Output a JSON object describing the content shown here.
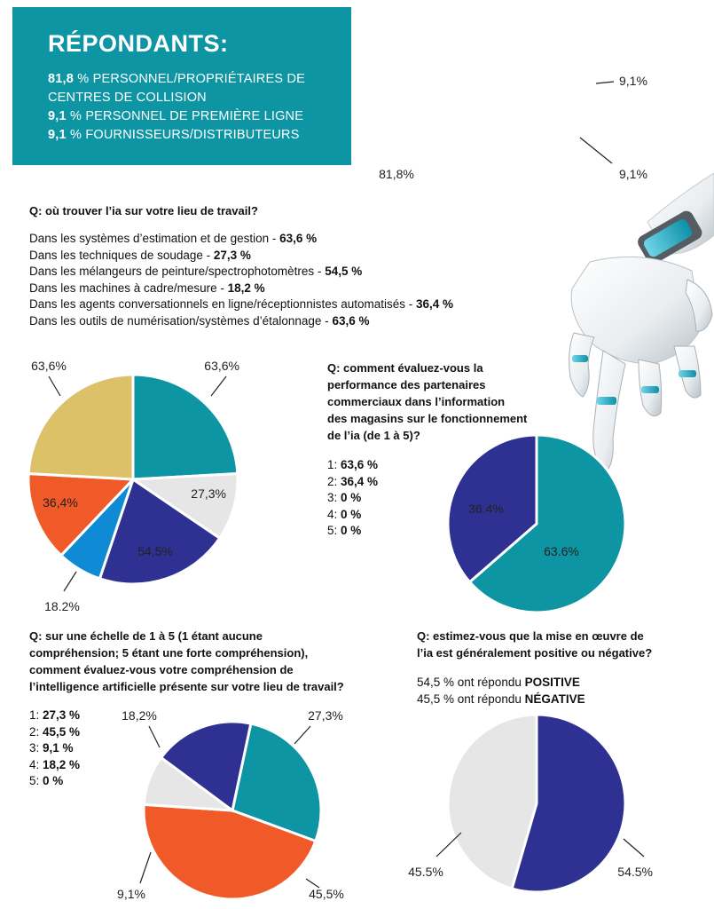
{
  "respondents": {
    "title": "RÉPONDANTS:",
    "lines": [
      {
        "pct": "81,8",
        "text": " % PERSONNEL/PROPRIÉTAIRES DE"
      },
      {
        "pct": "",
        "text": "CENTRES DE COLLISION"
      },
      {
        "pct": "9,1",
        "text": " % PERSONNEL DE PREMIÈRE LIGNE"
      },
      {
        "pct": "9,1",
        "text": " % FOURNISSEURS/DISTRIBUTEURS"
      }
    ]
  },
  "q1": {
    "question": "Q: où trouver l’ia sur votre lieu de travail?",
    "items": [
      {
        "text": "Dans les systèmes d’estimation et de gestion - ",
        "value": "63,6 %"
      },
      {
        "text": "Dans les techniques de soudage - ",
        "value": "27,3 %"
      },
      {
        "text": "Dans les mélangeurs de peinture/spectrophotomètres - ",
        "value": "54,5 %"
      },
      {
        "text": "Dans les machines à cadre/mesure - ",
        "value": "18,2 %"
      },
      {
        "text": "Dans les agents conversationnels en ligne/réceptionnistes automatisés - ",
        "value": "36,4 %"
      },
      {
        "text": "Dans les outils de numérisation/systèmes d’étalonnage - ",
        "value": "63,6 %"
      }
    ]
  },
  "q2": {
    "question_lines": [
      "Q: comment évaluez-vous la",
      "performance des partenaires",
      "commerciaux dans l’information",
      "des magasins sur le fonctionnement",
      "de l’ia (de 1 à 5)?"
    ],
    "items": [
      {
        "label": "1: ",
        "value": "63,6 %"
      },
      {
        "label": "2: ",
        "value": "36,4 %"
      },
      {
        "label": "3: ",
        "value": "0 %"
      },
      {
        "label": "4: ",
        "value": "0 %"
      },
      {
        "label": "5: ",
        "value": "0 %"
      }
    ]
  },
  "q3": {
    "question_lines": [
      "Q: sur une échelle de 1 à 5 (1 étant aucune",
      "compréhension; 5 étant une forte compréhension),",
      "comment évaluez-vous votre compréhension de",
      "l’intelligence artificielle présente sur votre lieu de travail?"
    ],
    "items": [
      {
        "label": "1: ",
        "value": "27,3 %"
      },
      {
        "label": "2: ",
        "value": "45,5 %"
      },
      {
        "label": "3: ",
        "value": "9,1 %"
      },
      {
        "label": "4: ",
        "value": "18,2 %"
      },
      {
        "label": "5: ",
        "value": "0 %"
      }
    ]
  },
  "q4": {
    "question_lines": [
      "Q: estimez-vous que la mise en œuvre de",
      "l’ia est généralement positive ou négative?"
    ],
    "answers": [
      {
        "text": "54,5 % ont répondu ",
        "value": "POSITIVE"
      },
      {
        "text": "45,5 % ont répondu ",
        "value": "NÉGATIVE"
      }
    ]
  },
  "colors": {
    "teal": "#0e95a3",
    "orange": "#f05a28",
    "navy": "#2e3192",
    "grey": "#e6e6e6",
    "gold": "#dcc168",
    "blue": "#0f8bd6"
  },
  "chart_data": [
    {
      "type": "pie",
      "slices": [
        {
          "label": "81,8%",
          "value": 81.8,
          "color": "#e6e6e6"
        },
        {
          "label": "9,1%",
          "value": 9.1,
          "color": "#0e95a3"
        },
        {
          "label": "9,1%",
          "value": 9.1,
          "color": "#f05a28"
        }
      ]
    },
    {
      "type": "pie",
      "slices": [
        {
          "label": "63,6%",
          "value": 63.6,
          "color": "#0e95a3"
        },
        {
          "label": "27,3%",
          "value": 27.3,
          "color": "#e6e6e6"
        },
        {
          "label": "54,5%",
          "value": 54.5,
          "color": "#2e3192"
        },
        {
          "label": "18,2%",
          "value": 18.2,
          "color": "#0f8bd6"
        },
        {
          "label": "36,4%",
          "value": 36.4,
          "color": "#f05a28"
        },
        {
          "label": "63,6%",
          "value": 63.6,
          "color": "#dcc168"
        }
      ]
    },
    {
      "type": "pie",
      "slices": [
        {
          "label": "63.6%",
          "value": 63.6,
          "color": "#0e95a3"
        },
        {
          "label": "36.4%",
          "value": 36.4,
          "color": "#2e3192"
        }
      ]
    },
    {
      "type": "pie",
      "slices": [
        {
          "label": "27,3%",
          "value": 27.3,
          "color": "#0e95a3"
        },
        {
          "label": "45,5%",
          "value": 45.5,
          "color": "#f05a28"
        },
        {
          "label": "9,1%",
          "value": 9.1,
          "color": "#e6e6e6"
        },
        {
          "label": "18,2%",
          "value": 18.2,
          "color": "#2e3192"
        }
      ]
    },
    {
      "type": "pie",
      "slices": [
        {
          "label": "54.5%",
          "value": 54.5,
          "color": "#2e3192"
        },
        {
          "label": "45.5%",
          "value": 45.5,
          "color": "#e6e6e6"
        }
      ]
    }
  ]
}
